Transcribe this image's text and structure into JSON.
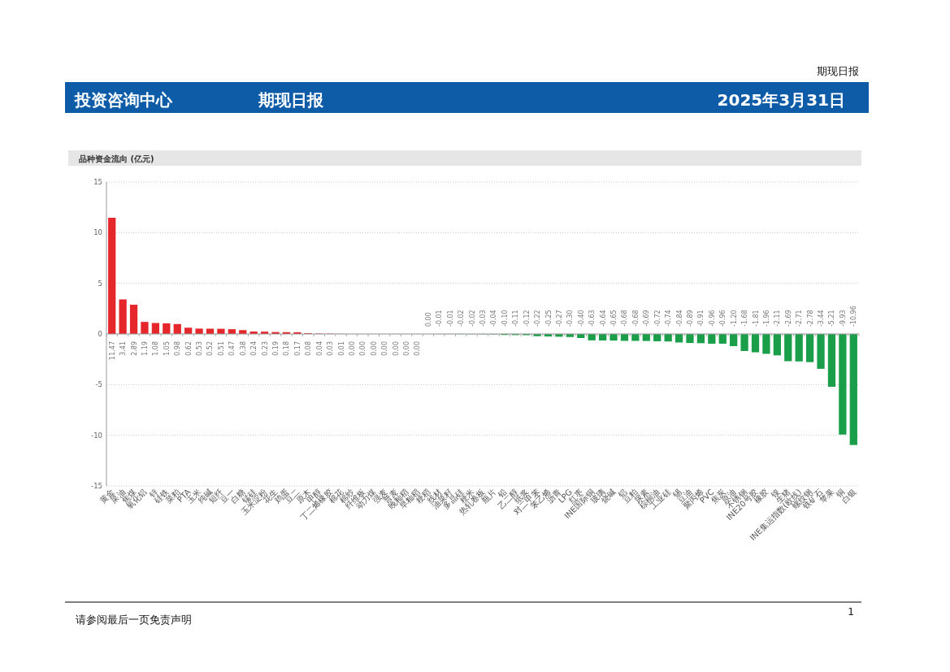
{
  "chart_data": {
    "type": "bar",
    "title": "品种资金流向 (亿元)",
    "categories": [
      "黄金",
      "菜油",
      "焦煤",
      "氧化铝",
      "锌",
      "硅铁",
      "菜粕",
      "PTA",
      "玉米",
      "纯碱",
      "短纤",
      "豆一",
      "白糖",
      "锰硅",
      "玉米淀粉",
      "花生",
      "鸡蛋",
      "豆二",
      "原木",
      "甲醇",
      "丁二烯橡胶",
      "棉花",
      "棉纱",
      "纤维板",
      "动力煤",
      "强麦",
      "普麦",
      "晚籼稻",
      "早籼稻",
      "粳稻",
      "线材",
      "油菜籽",
      "多晶硅",
      "粳米",
      "热轧卷板",
      "瓶片",
      "铅",
      "乙二醇",
      "纸浆",
      "对二甲苯",
      "苯乙烯",
      "沥青",
      "LPG",
      "红枣",
      "INE国际铜",
      "玻璃",
      "烧碱",
      "铝",
      "豆粕",
      "尿素",
      "棕榈油",
      "工业硅",
      "锡",
      "豆油",
      "聚丙烯",
      "PVC",
      "焦炭",
      "原油",
      "不锈钢",
      "INE20号胶",
      "橡胶",
      "镍",
      "生猪",
      "INE集运指数(欧线)",
      "螺纹钢",
      "铁矿石",
      "苹果",
      "铜",
      "白银"
    ],
    "values": [
      11.47,
      3.41,
      2.89,
      1.19,
      1.08,
      1.05,
      0.98,
      0.62,
      0.53,
      0.52,
      0.51,
      0.47,
      0.38,
      0.24,
      0.23,
      0.19,
      0.18,
      0.17,
      0.08,
      0.04,
      0.03,
      0.01,
      0,
      0,
      0,
      0,
      0,
      0,
      0,
      -0.0,
      -0.01,
      -0.01,
      -0.02,
      -0.02,
      -0.03,
      -0.04,
      -0.1,
      -0.11,
      -0.12,
      -0.22,
      -0.25,
      -0.27,
      -0.3,
      -0.4,
      -0.63,
      -0.64,
      -0.65,
      -0.68,
      -0.68,
      -0.69,
      -0.72,
      -0.74,
      -0.84,
      -0.89,
      -0.91,
      -0.96,
      -0.96,
      -1.2,
      -1.68,
      -1.81,
      -1.96,
      -2.11,
      -2.69,
      -2.71,
      -2.78,
      -3.44,
      -5.21,
      -9.93,
      -10.96
    ],
    "value_labels": [
      "11.47",
      "3.41",
      "2.89",
      "1.19",
      "1.08",
      "1.05",
      "0.98",
      "0.62",
      "0.53",
      "0.52",
      "0.51",
      "0.47",
      "0.38",
      "0.24",
      "0.23",
      "0.19",
      "0.18",
      "0.17",
      "0.08",
      "0.04",
      "0.03",
      "0.01",
      "0.00",
      "0.00",
      "0.00",
      "0.00",
      "0.00",
      "0.00",
      "0.00",
      "0.00",
      "-0.01",
      "-0.01",
      "-0.02",
      "-0.02",
      "-0.03",
      "-0.04",
      "-0.10",
      "-0.11",
      "-0.12",
      "-0.22",
      "-0.25",
      "-0.27",
      "-0.30",
      "-0.40",
      "-0.63",
      "-0.64",
      "-0.65",
      "-0.68",
      "-0.68",
      "-0.69",
      "-0.72",
      "-0.74",
      "-0.84",
      "-0.89",
      "-0.91",
      "-0.96",
      "-0.96",
      "-1.20",
      "-1.68",
      "-1.81",
      "-1.96",
      "-2.11",
      "-2.69",
      "-2.71",
      "-2.78",
      "-3.44",
      "-5.21",
      "-9.93",
      "-10.96"
    ],
    "colors": [
      "#e5262b",
      "#e5262b",
      "#e5262b",
      "#e5262b",
      "#e5262b",
      "#e5262b",
      "#e5262b",
      "#e5262b",
      "#e5262b",
      "#e5262b",
      "#e5262b",
      "#e5262b",
      "#e5262b",
      "#e5262b",
      "#e5262b",
      "#e5262b",
      "#e5262b",
      "#e5262b",
      "#e5262b",
      "#e5262b",
      "#e5262b",
      "#e5262b",
      "#e5262b",
      "#e5262b",
      "#e5262b",
      "#e5262b",
      "#e5262b",
      "#e5262b",
      "#e5262b",
      "#1a9e4a",
      "#1a9e4a",
      "#1a9e4a",
      "#1a9e4a",
      "#1a9e4a",
      "#1a9e4a",
      "#1a9e4a",
      "#1a9e4a",
      "#1a9e4a",
      "#1a9e4a",
      "#1a9e4a",
      "#1a9e4a",
      "#1a9e4a",
      "#1a9e4a",
      "#1a9e4a",
      "#1a9e4a",
      "#1a9e4a",
      "#1a9e4a",
      "#1a9e4a",
      "#1a9e4a",
      "#1a9e4a",
      "#1a9e4a",
      "#1a9e4a",
      "#1a9e4a",
      "#1a9e4a",
      "#1a9e4a",
      "#1a9e4a",
      "#1a9e4a",
      "#1a9e4a",
      "#1a9e4a",
      "#1a9e4a",
      "#1a9e4a",
      "#1a9e4a",
      "#1a9e4a",
      "#1a9e4a",
      "#1a9e4a",
      "#1a9e4a",
      "#1a9e4a",
      "#1a9e4a",
      "#1a9e4a"
    ],
    "ylim": [
      -15,
      15
    ],
    "yticks": [
      -15,
      -10,
      -5,
      0,
      5,
      10,
      15
    ],
    "grid": "y",
    "annotations": [
      "期现日报",
      "投资咨询中心",
      "期现日报",
      "2025年3月31日",
      "请参阅最后一页免责声明",
      "1"
    ]
  }
}
